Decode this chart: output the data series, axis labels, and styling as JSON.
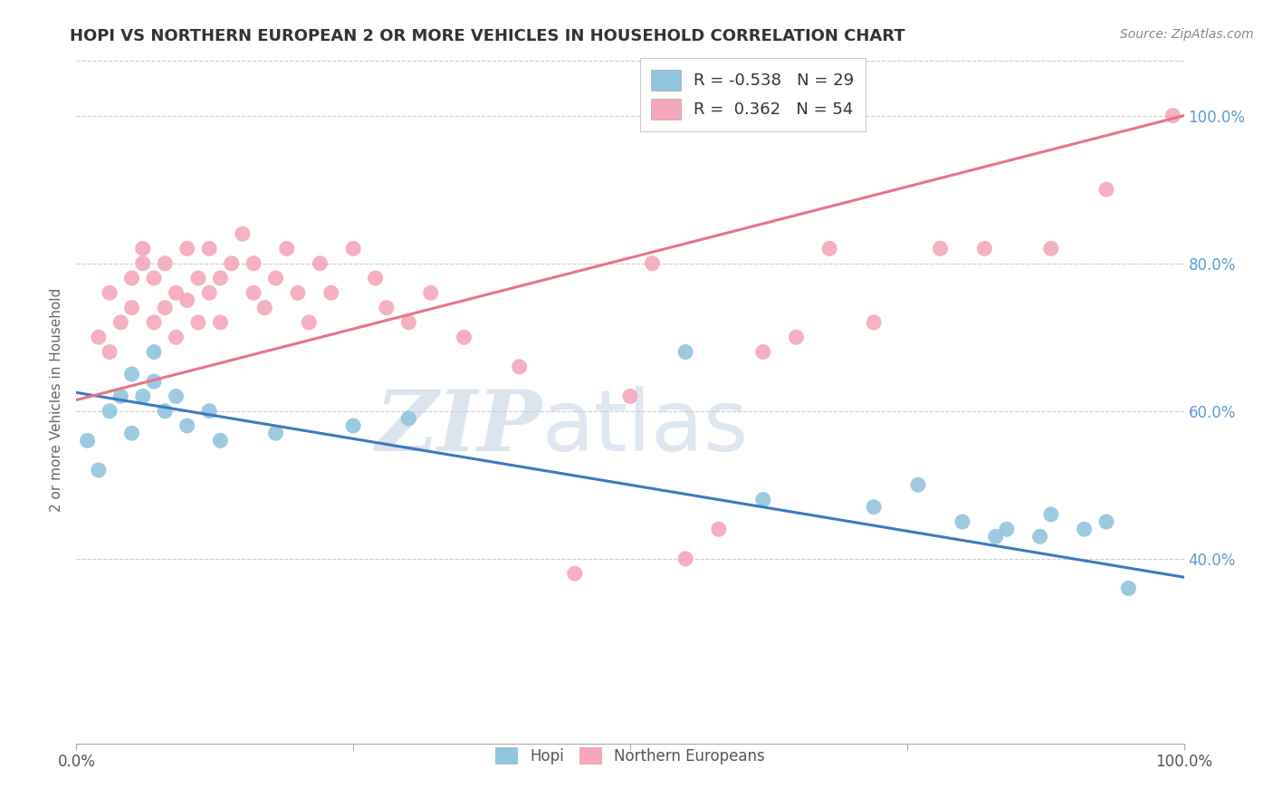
{
  "title": "HOPI VS NORTHERN EUROPEAN 2 OR MORE VEHICLES IN HOUSEHOLD CORRELATION CHART",
  "source": "Source: ZipAtlas.com",
  "ylabel": "2 or more Vehicles in Household",
  "xlim": [
    0.0,
    1.0
  ],
  "ylim": [
    0.15,
    1.08
  ],
  "y_ticks_right": [
    0.4,
    0.6,
    0.8,
    1.0
  ],
  "y_tick_labels_right": [
    "40.0%",
    "60.0%",
    "80.0%",
    "100.0%"
  ],
  "hopi_R": "-0.538",
  "hopi_N": "29",
  "northern_R": "0.362",
  "northern_N": "54",
  "hopi_color": "#92c5de",
  "northern_color": "#f4a8bc",
  "hopi_line_color": "#3a7abf",
  "northern_line_color": "#e8738a",
  "background_color": "#ffffff",
  "watermark_zip": "ZIP",
  "watermark_atlas": "atlas",
  "hopi_line_x": [
    0.0,
    1.0
  ],
  "hopi_line_y": [
    0.625,
    0.375
  ],
  "northern_line_x": [
    0.0,
    1.0
  ],
  "northern_line_y": [
    0.615,
    1.0
  ],
  "hopi_x": [
    0.01,
    0.02,
    0.03,
    0.04,
    0.05,
    0.05,
    0.06,
    0.07,
    0.07,
    0.08,
    0.09,
    0.1,
    0.12,
    0.13,
    0.18,
    0.25,
    0.3,
    0.55,
    0.62,
    0.72,
    0.76,
    0.8,
    0.83,
    0.84,
    0.87,
    0.88,
    0.91,
    0.93,
    0.95
  ],
  "hopi_y": [
    0.56,
    0.52,
    0.6,
    0.62,
    0.65,
    0.57,
    0.62,
    0.68,
    0.64,
    0.6,
    0.62,
    0.58,
    0.6,
    0.56,
    0.57,
    0.58,
    0.59,
    0.68,
    0.48,
    0.47,
    0.5,
    0.45,
    0.43,
    0.44,
    0.43,
    0.46,
    0.44,
    0.45,
    0.36
  ],
  "northern_x": [
    0.02,
    0.03,
    0.03,
    0.04,
    0.05,
    0.05,
    0.06,
    0.06,
    0.07,
    0.07,
    0.08,
    0.08,
    0.09,
    0.09,
    0.1,
    0.1,
    0.11,
    0.11,
    0.12,
    0.12,
    0.13,
    0.13,
    0.14,
    0.15,
    0.16,
    0.16,
    0.17,
    0.18,
    0.19,
    0.2,
    0.21,
    0.22,
    0.23,
    0.25,
    0.27,
    0.28,
    0.3,
    0.32,
    0.35,
    0.4,
    0.45,
    0.5,
    0.52,
    0.55,
    0.58,
    0.62,
    0.65,
    0.68,
    0.72,
    0.78,
    0.82,
    0.88,
    0.93,
    0.99
  ],
  "northern_y": [
    0.7,
    0.68,
    0.76,
    0.72,
    0.78,
    0.74,
    0.8,
    0.82,
    0.78,
    0.72,
    0.74,
    0.8,
    0.7,
    0.76,
    0.75,
    0.82,
    0.72,
    0.78,
    0.76,
    0.82,
    0.78,
    0.72,
    0.8,
    0.84,
    0.76,
    0.8,
    0.74,
    0.78,
    0.82,
    0.76,
    0.72,
    0.8,
    0.76,
    0.82,
    0.78,
    0.74,
    0.72,
    0.76,
    0.7,
    0.66,
    0.38,
    0.62,
    0.8,
    0.4,
    0.44,
    0.68,
    0.7,
    0.82,
    0.72,
    0.82,
    0.82,
    0.82,
    0.9,
    1.0
  ]
}
